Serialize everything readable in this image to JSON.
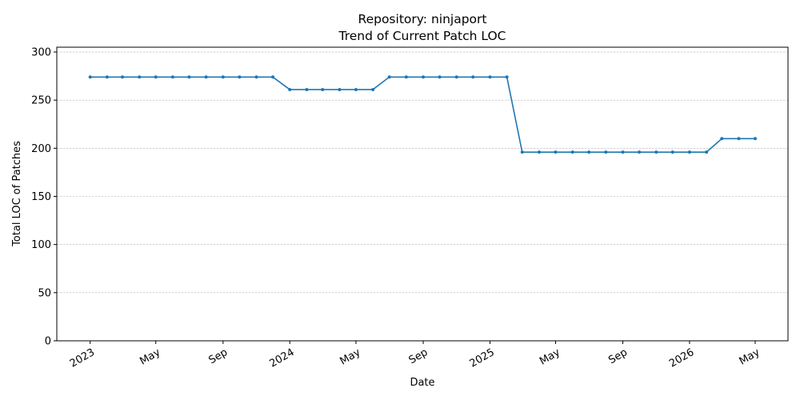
{
  "chart_data": {
    "type": "line",
    "title": "Repository: ninjaport",
    "subtitle": "Trend of Current Patch LOC",
    "xlabel": "Date",
    "ylabel": "Total LOC of Patches",
    "ylim": [
      0,
      305
    ],
    "yticks": [
      0,
      50,
      100,
      150,
      200,
      250,
      300
    ],
    "xticks": [
      {
        "date": "2023-01-01",
        "label": "2023"
      },
      {
        "date": "2023-05-01",
        "label": "May"
      },
      {
        "date": "2023-09-01",
        "label": "Sep"
      },
      {
        "date": "2024-01-01",
        "label": "2024"
      },
      {
        "date": "2024-05-01",
        "label": "May"
      },
      {
        "date": "2024-09-01",
        "label": "Sep"
      },
      {
        "date": "2025-01-01",
        "label": "2025"
      },
      {
        "date": "2025-05-01",
        "label": "May"
      },
      {
        "date": "2025-09-01",
        "label": "Sep"
      },
      {
        "date": "2026-01-01",
        "label": "2026"
      },
      {
        "date": "2026-05-01",
        "label": "May"
      }
    ],
    "grid": "y-dashed",
    "color": "#1f77b4",
    "x": [
      "2023-01-01",
      "2023-02-01",
      "2023-03-01",
      "2023-04-01",
      "2023-05-01",
      "2023-06-01",
      "2023-07-01",
      "2023-08-01",
      "2023-09-01",
      "2023-10-01",
      "2023-11-01",
      "2023-12-01",
      "2024-01-01",
      "2024-02-01",
      "2024-03-01",
      "2024-04-01",
      "2024-05-01",
      "2024-06-01",
      "2024-07-01",
      "2024-08-01",
      "2024-09-01",
      "2024-10-01",
      "2024-11-01",
      "2024-12-01",
      "2025-01-01",
      "2025-02-01",
      "2025-03-01",
      "2025-04-01",
      "2025-05-01",
      "2025-06-01",
      "2025-07-01",
      "2025-08-01",
      "2025-09-01",
      "2025-10-01",
      "2025-11-01",
      "2025-12-01",
      "2026-01-01",
      "2026-02-01",
      "2026-03-01",
      "2026-04-01",
      "2026-05-01"
    ],
    "series": [
      {
        "values": [
          274,
          274,
          274,
          274,
          274,
          274,
          274,
          274,
          274,
          274,
          274,
          274,
          261,
          261,
          261,
          261,
          261,
          261,
          274,
          274,
          274,
          274,
          274,
          274,
          274,
          274,
          196,
          196,
          196,
          196,
          196,
          196,
          196,
          196,
          196,
          196,
          196,
          196,
          210,
          210,
          210
        ]
      }
    ]
  }
}
